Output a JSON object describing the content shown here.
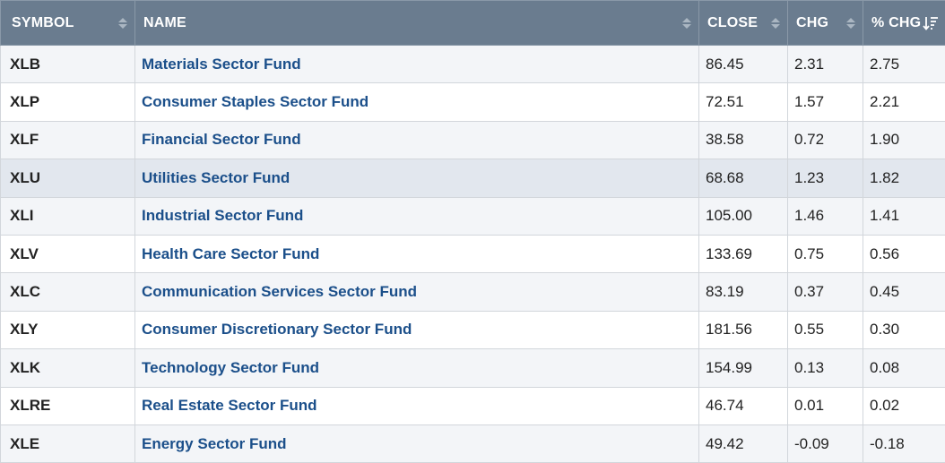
{
  "columns": {
    "symbol": "SYMBOL",
    "name": "NAME",
    "close": "CLOSE",
    "chg": "CHG",
    "pct_chg": "% CHG"
  },
  "sort": {
    "column": "pct_chg",
    "direction": "descending"
  },
  "colors": {
    "header_bg": "#6a7c8f",
    "link": "#1b4f8a",
    "row_highlight": "#e2e7ee"
  },
  "rows": [
    {
      "symbol": "XLB",
      "name": "Materials Sector Fund",
      "close": "86.45",
      "chg": "2.31",
      "pct_chg": "2.75"
    },
    {
      "symbol": "XLP",
      "name": "Consumer Staples Sector Fund",
      "close": "72.51",
      "chg": "1.57",
      "pct_chg": "2.21"
    },
    {
      "symbol": "XLF",
      "name": "Financial Sector Fund",
      "close": "38.58",
      "chg": "0.72",
      "pct_chg": "1.90"
    },
    {
      "symbol": "XLU",
      "name": "Utilities Sector Fund",
      "close": "68.68",
      "chg": "1.23",
      "pct_chg": "1.82"
    },
    {
      "symbol": "XLI",
      "name": "Industrial Sector Fund",
      "close": "105.00",
      "chg": "1.46",
      "pct_chg": "1.41"
    },
    {
      "symbol": "XLV",
      "name": "Health Care Sector Fund",
      "close": "133.69",
      "chg": "0.75",
      "pct_chg": "0.56"
    },
    {
      "symbol": "XLC",
      "name": "Communication Services Sector Fund",
      "close": "83.19",
      "chg": "0.37",
      "pct_chg": "0.45"
    },
    {
      "symbol": "XLY",
      "name": "Consumer Discretionary Sector Fund",
      "close": "181.56",
      "chg": "0.55",
      "pct_chg": "0.30"
    },
    {
      "symbol": "XLK",
      "name": "Technology Sector Fund",
      "close": "154.99",
      "chg": "0.13",
      "pct_chg": "0.08"
    },
    {
      "symbol": "XLRE",
      "name": "Real Estate Sector Fund",
      "close": "46.74",
      "chg": "0.01",
      "pct_chg": "0.02"
    },
    {
      "symbol": "XLE",
      "name": "Energy Sector Fund",
      "close": "49.42",
      "chg": "-0.09",
      "pct_chg": "-0.18"
    }
  ]
}
